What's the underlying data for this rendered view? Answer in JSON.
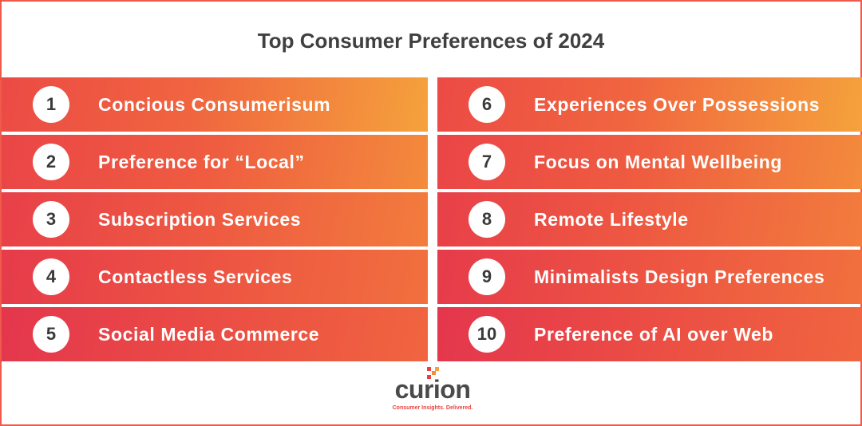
{
  "title": "Top Consumer Preferences of 2024",
  "left_items": [
    {
      "num": "1",
      "label": "Concious Consumerisum"
    },
    {
      "num": "2",
      "label": "Preference for “Local”"
    },
    {
      "num": "3",
      "label": "Subscription Services"
    },
    {
      "num": "4",
      "label": "Contactless Services"
    },
    {
      "num": "5",
      "label": "Social Media Commerce"
    }
  ],
  "right_items": [
    {
      "num": "6",
      "label": "Experiences Over Possessions"
    },
    {
      "num": "7",
      "label": "Focus on Mental Wellbeing"
    },
    {
      "num": "8",
      "label": "Remote Lifestyle"
    },
    {
      "num": "9",
      "label": "Minimalists Design Preferences"
    },
    {
      "num": "10",
      "label": "Preference of AI over Web"
    }
  ],
  "logo": {
    "name": "curion",
    "tagline": "Consumer Insights. Delivered."
  },
  "colors": {
    "frame_border": "#ef5a4a",
    "gradient_start": "#e63b4b",
    "gradient_end": "#f5a23c",
    "title_text": "#404040",
    "logo_text": "#4a4a4a",
    "tagline_text": "#e8423f"
  }
}
